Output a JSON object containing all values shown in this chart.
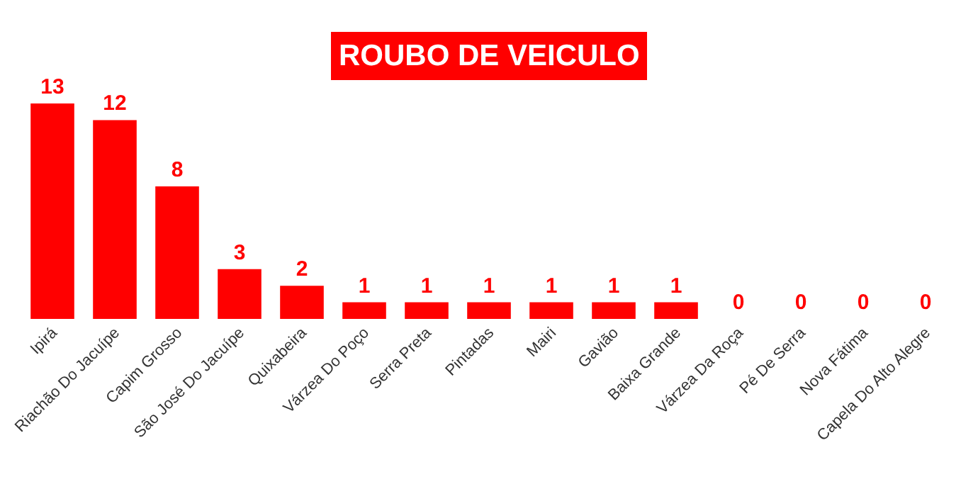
{
  "chart_data": {
    "type": "bar",
    "title": "ROUBO DE VEICULO",
    "categories": [
      "Ipirá",
      "Riachão Do Jacuípe",
      "Capim Grosso",
      "São José Do Jacuípe",
      "Quixabeira",
      "Várzea Do Poço",
      "Serra Preta",
      "Pintadas",
      "Mairi",
      "Gavião",
      "Baixa Grande",
      "Várzea Da Roça",
      "Pé De Serra",
      "Nova Fátima",
      "Capela Do Alto Alegre"
    ],
    "values": [
      13,
      12,
      8,
      3,
      2,
      1,
      1,
      1,
      1,
      1,
      1,
      0,
      0,
      0,
      0
    ],
    "color": "#ff0000",
    "data_labels": true,
    "grid": false,
    "legend": false
  }
}
